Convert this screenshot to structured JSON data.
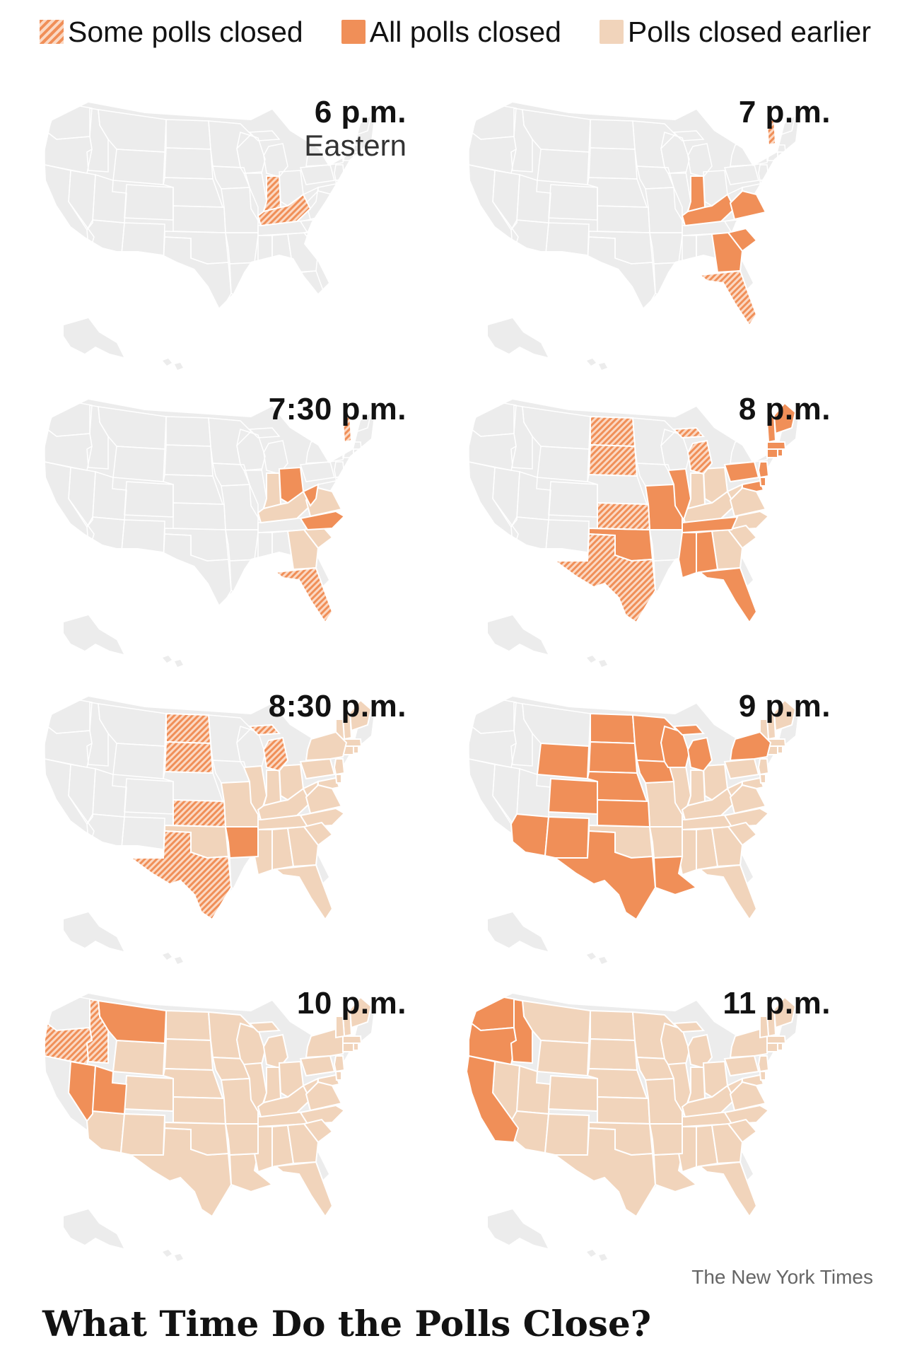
{
  "legend": {
    "items": [
      {
        "label": "Some polls closed",
        "style": "hatched"
      },
      {
        "label": "All polls closed",
        "style": "solid"
      },
      {
        "label": "Polls closed earlier",
        "style": "light"
      }
    ]
  },
  "colors": {
    "all_closed": "#f08f58",
    "closed_earlier": "#f1d4bb",
    "not_closed": "#ececec"
  },
  "panels": [
    {
      "time": "6 p.m.",
      "zone": "Eastern",
      "some": [
        "IN",
        "KY"
      ],
      "all": [],
      "earlier": []
    },
    {
      "time": "7 p.m.",
      "zone": "",
      "some": [
        "NH",
        "FL"
      ],
      "all": [
        "IN",
        "KY",
        "VA",
        "SC",
        "GA"
      ],
      "earlier": []
    },
    {
      "time": "7:30 p.m.",
      "zone": "",
      "some": [
        "NH",
        "FL"
      ],
      "all": [
        "OH",
        "WV",
        "NC"
      ],
      "earlier": [
        "IN",
        "KY",
        "VA",
        "SC",
        "GA"
      ]
    },
    {
      "time": "8 p.m.",
      "zone": "",
      "some": [
        "ND",
        "SD",
        "KS",
        "TX",
        "MI"
      ],
      "all": [
        "MO",
        "IL",
        "OK",
        "TN",
        "MS",
        "AL",
        "FL",
        "PA",
        "MD",
        "DE",
        "NJ",
        "ME",
        "MA",
        "RI",
        "CT",
        "NH"
      ],
      "earlier": [
        "IN",
        "KY",
        "OH",
        "WV",
        "VA",
        "NC",
        "SC",
        "GA"
      ]
    },
    {
      "time": "8:30 p.m.",
      "zone": "",
      "some": [
        "ND",
        "SD",
        "KS",
        "TX",
        "MI"
      ],
      "all": [
        "AR"
      ],
      "earlier": [
        "MO",
        "IL",
        "OK",
        "TN",
        "MS",
        "AL",
        "FL",
        "PA",
        "MD",
        "DE",
        "NJ",
        "ME",
        "MA",
        "RI",
        "CT",
        "NH",
        "IN",
        "KY",
        "OH",
        "WV",
        "VA",
        "NC",
        "SC",
        "GA",
        "VT",
        "NY"
      ]
    },
    {
      "time": "9 p.m.",
      "zone": "",
      "some": [],
      "all": [
        "WY",
        "CO",
        "AZ",
        "NM",
        "ND",
        "SD",
        "NE",
        "KS",
        "TX",
        "MN",
        "IA",
        "WI",
        "MI",
        "NY",
        "LA"
      ],
      "earlier": [
        "MO",
        "IL",
        "OK",
        "TN",
        "MS",
        "AL",
        "FL",
        "PA",
        "MD",
        "DE",
        "NJ",
        "ME",
        "MA",
        "RI",
        "CT",
        "NH",
        "IN",
        "KY",
        "OH",
        "WV",
        "VA",
        "NC",
        "SC",
        "GA",
        "VT",
        "AR"
      ]
    },
    {
      "time": "10 p.m.",
      "zone": "",
      "some": [
        "OR",
        "ID"
      ],
      "all": [
        "MT",
        "NV",
        "UT"
      ],
      "earlier": [
        "WY",
        "CO",
        "AZ",
        "NM",
        "ND",
        "SD",
        "NE",
        "KS",
        "TX",
        "MN",
        "IA",
        "WI",
        "MI",
        "NY",
        "LA",
        "MO",
        "IL",
        "OK",
        "TN",
        "MS",
        "AL",
        "FL",
        "PA",
        "MD",
        "DE",
        "NJ",
        "ME",
        "MA",
        "RI",
        "CT",
        "NH",
        "IN",
        "KY",
        "OH",
        "WV",
        "VA",
        "NC",
        "SC",
        "GA",
        "VT",
        "AR"
      ]
    },
    {
      "time": "11 p.m.",
      "zone": "",
      "some": [],
      "all": [
        "WA",
        "OR",
        "ID",
        "CA"
      ],
      "earlier": [
        "MT",
        "NV",
        "UT",
        "WY",
        "CO",
        "AZ",
        "NM",
        "ND",
        "SD",
        "NE",
        "KS",
        "TX",
        "MN",
        "IA",
        "WI",
        "MI",
        "NY",
        "LA",
        "MO",
        "IL",
        "OK",
        "TN",
        "MS",
        "AL",
        "FL",
        "PA",
        "MD",
        "DE",
        "NJ",
        "ME",
        "MA",
        "RI",
        "CT",
        "NH",
        "IN",
        "KY",
        "OH",
        "WV",
        "VA",
        "NC",
        "SC",
        "GA",
        "VT",
        "AR"
      ]
    }
  ],
  "credit": "The New York Times",
  "headline": "What Time Do the Polls Close?"
}
